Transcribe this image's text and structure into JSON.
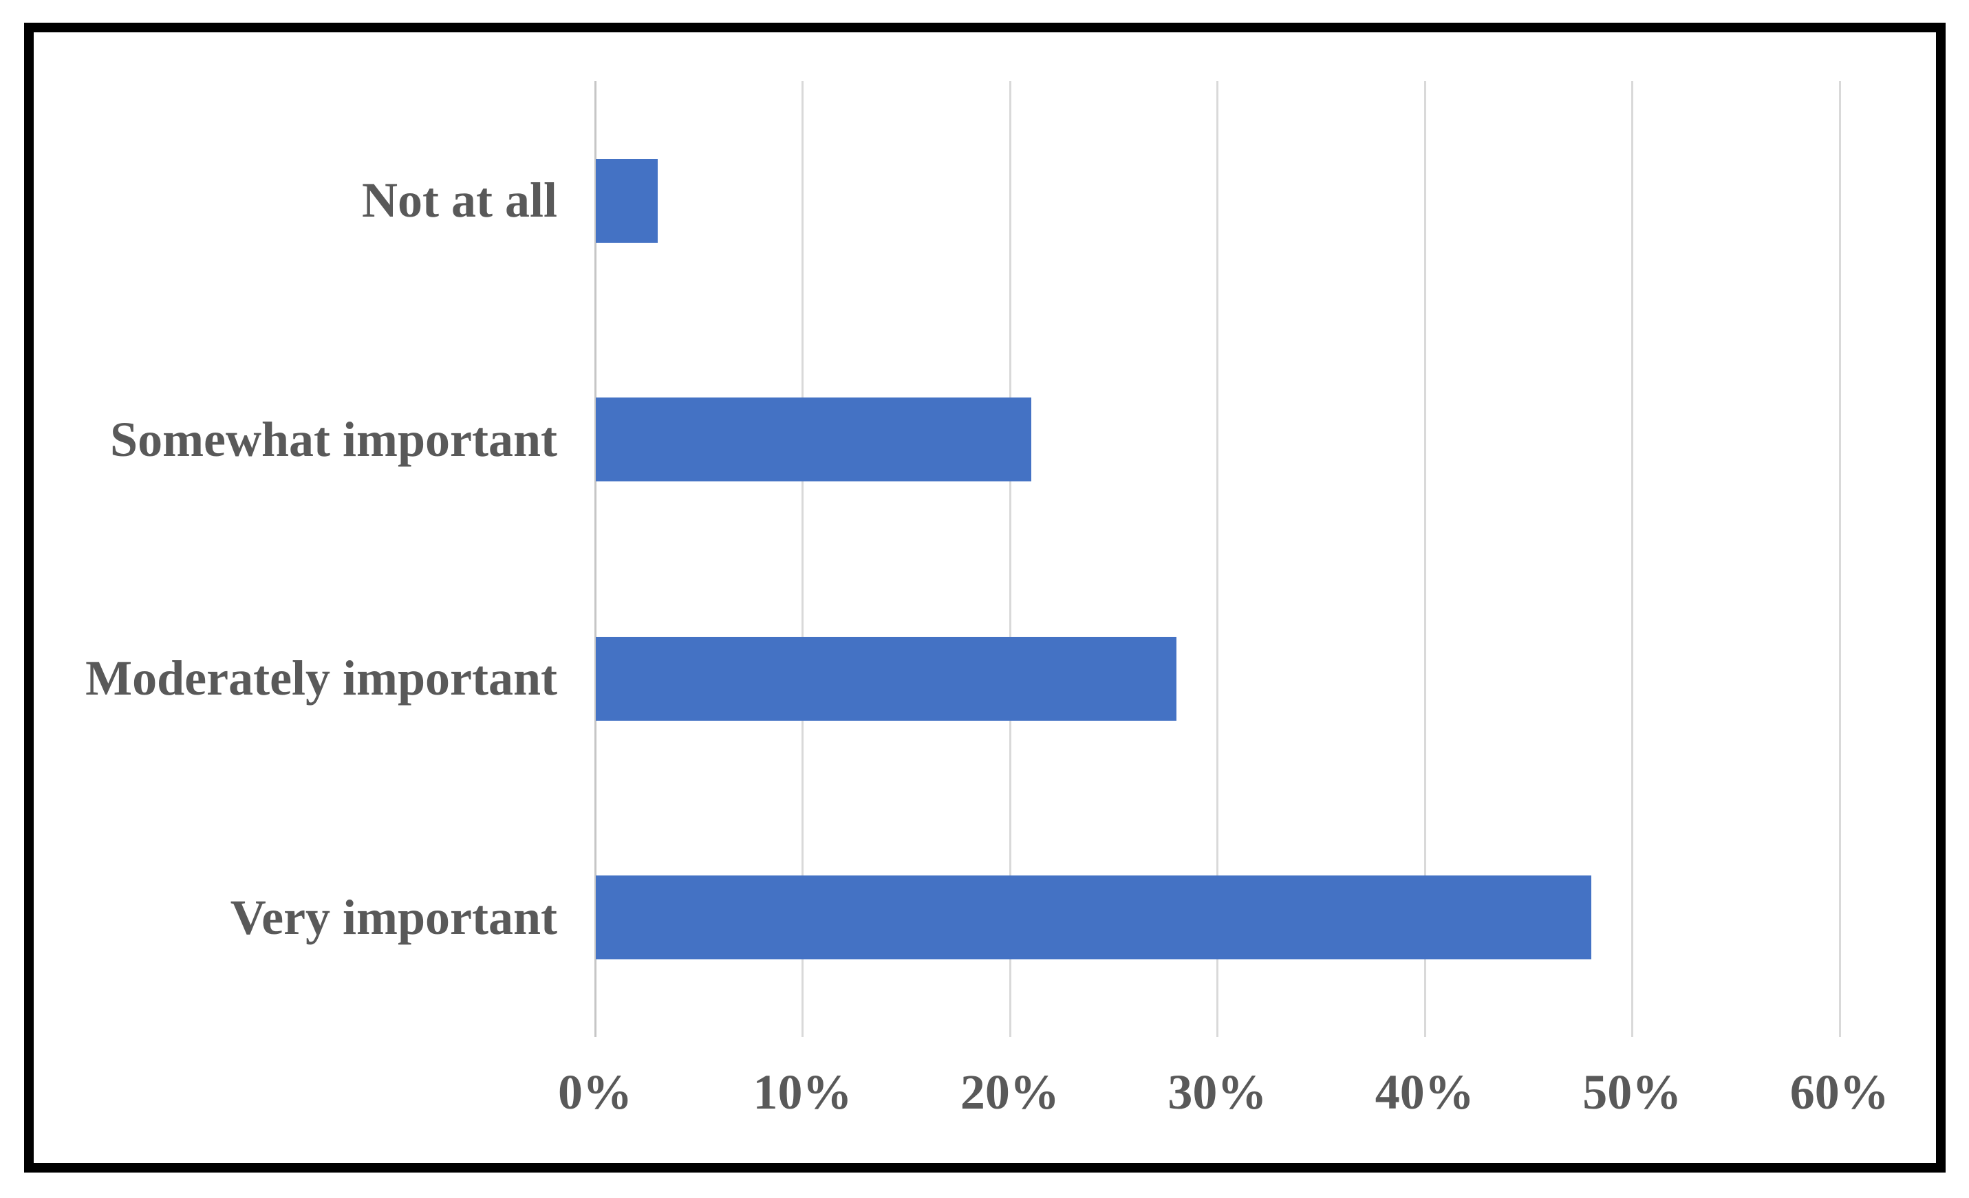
{
  "figure": {
    "background_color": "#FFFFFF",
    "frame_color": "#000000"
  },
  "chart_data": {
    "type": "bar",
    "orientation": "horizontal",
    "title": "",
    "xlabel": "",
    "ylabel": "",
    "categories": [
      "Not at all",
      "Somewhat important",
      "Moderately important",
      "Very important"
    ],
    "values": [
      3,
      21,
      28,
      48
    ],
    "value_unit": "%",
    "xlim": [
      0,
      60
    ],
    "x_tick_values": [
      0,
      10,
      20,
      30,
      40,
      50,
      60
    ],
    "x_tick_labels": [
      "0%",
      "10%",
      "20%",
      "30%",
      "40%",
      "50%",
      "60%"
    ],
    "grid": true,
    "legend": false,
    "bar_color": "#4472C4",
    "gridline_color": "#D9D9D9",
    "axis_line_color": "#C6C6C6",
    "label_color": "#595959"
  }
}
